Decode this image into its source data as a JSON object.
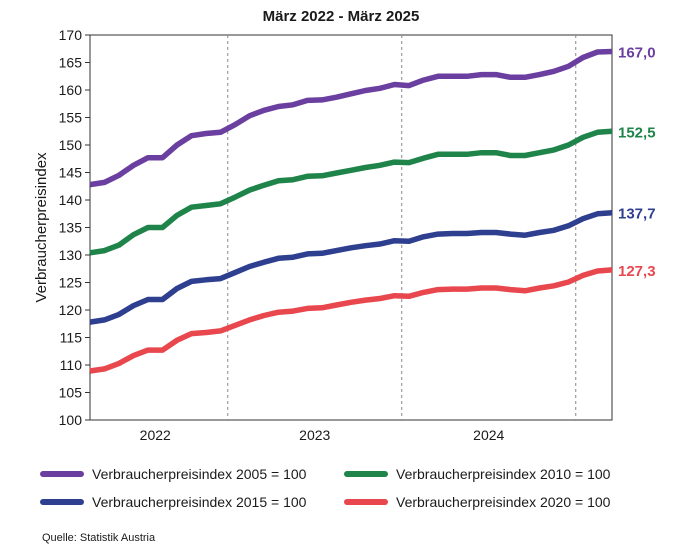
{
  "title": "März 2022 - März 2025",
  "source": "Quelle: Statistik Austria",
  "chart_data": {
    "type": "line",
    "title": "März 2022 - März 2025",
    "ylabel": "Verbraucherpreisindex",
    "xlabel": "",
    "ylim": [
      100,
      170
    ],
    "yticks": [
      100,
      105,
      110,
      115,
      120,
      125,
      130,
      135,
      140,
      145,
      150,
      155,
      160,
      165,
      170
    ],
    "year_labels": [
      "2022",
      "2023",
      "2024"
    ],
    "grid": "vertical dashed at year boundaries",
    "legend_position": "bottom",
    "x": [
      "2022-03",
      "2022-04",
      "2022-05",
      "2022-06",
      "2022-07",
      "2022-08",
      "2022-09",
      "2022-10",
      "2022-11",
      "2022-12",
      "2023-01",
      "2023-02",
      "2023-03",
      "2023-04",
      "2023-05",
      "2023-06",
      "2023-07",
      "2023-08",
      "2023-09",
      "2023-10",
      "2023-11",
      "2023-12",
      "2024-01",
      "2024-02",
      "2024-03",
      "2024-04",
      "2024-05",
      "2024-06",
      "2024-07",
      "2024-08",
      "2024-09",
      "2024-10",
      "2024-11",
      "2024-12",
      "2025-01",
      "2025-02",
      "2025-03"
    ],
    "series": [
      {
        "name": "Verbraucherpreisindex 2005 = 100",
        "color": "#6b3fa0",
        "end_label": "167,0",
        "values": [
          142.8,
          143.2,
          144.5,
          146.3,
          147.7,
          147.7,
          150.0,
          151.7,
          152.1,
          152.3,
          153.7,
          155.3,
          156.3,
          157.0,
          157.3,
          158.1,
          158.2,
          158.7,
          159.3,
          159.9,
          160.3,
          161.0,
          160.8,
          161.8,
          162.5,
          162.5,
          162.5,
          162.8,
          162.8,
          162.3,
          162.3,
          162.8,
          163.4,
          164.3,
          165.9,
          166.9,
          167.0
        ]
      },
      {
        "name": "Verbraucherpreisindex 2010 = 100",
        "color": "#1e8449",
        "end_label": "152,5",
        "values": [
          130.4,
          130.8,
          131.8,
          133.7,
          135.0,
          135.0,
          137.2,
          138.7,
          139.0,
          139.3,
          140.5,
          141.8,
          142.7,
          143.5,
          143.7,
          144.3,
          144.4,
          144.9,
          145.4,
          145.9,
          146.3,
          146.9,
          146.8,
          147.6,
          148.3,
          148.3,
          148.3,
          148.6,
          148.6,
          148.1,
          148.1,
          148.6,
          149.1,
          150.0,
          151.4,
          152.3,
          152.5
        ]
      },
      {
        "name": "Verbraucherpreisindex 2015 = 100",
        "color": "#2e3f8f",
        "end_label": "137,7",
        "values": [
          117.8,
          118.2,
          119.2,
          120.8,
          121.9,
          121.9,
          123.9,
          125.2,
          125.5,
          125.7,
          126.8,
          127.9,
          128.7,
          129.4,
          129.6,
          130.2,
          130.3,
          130.8,
          131.3,
          131.7,
          132.0,
          132.6,
          132.5,
          133.3,
          133.8,
          133.9,
          133.9,
          134.1,
          134.1,
          133.8,
          133.6,
          134.1,
          134.5,
          135.3,
          136.6,
          137.5,
          137.7
        ]
      },
      {
        "name": "Verbraucherpreisindex 2020 = 100",
        "color": "#e8474e",
        "end_label": "127,3",
        "values": [
          108.9,
          109.3,
          110.3,
          111.7,
          112.7,
          112.7,
          114.5,
          115.7,
          115.9,
          116.2,
          117.2,
          118.2,
          119.0,
          119.6,
          119.8,
          120.3,
          120.4,
          120.9,
          121.4,
          121.8,
          122.1,
          122.6,
          122.5,
          123.2,
          123.7,
          123.8,
          123.8,
          124.0,
          124.0,
          123.7,
          123.5,
          124.0,
          124.4,
          125.1,
          126.3,
          127.1,
          127.3
        ]
      }
    ]
  }
}
